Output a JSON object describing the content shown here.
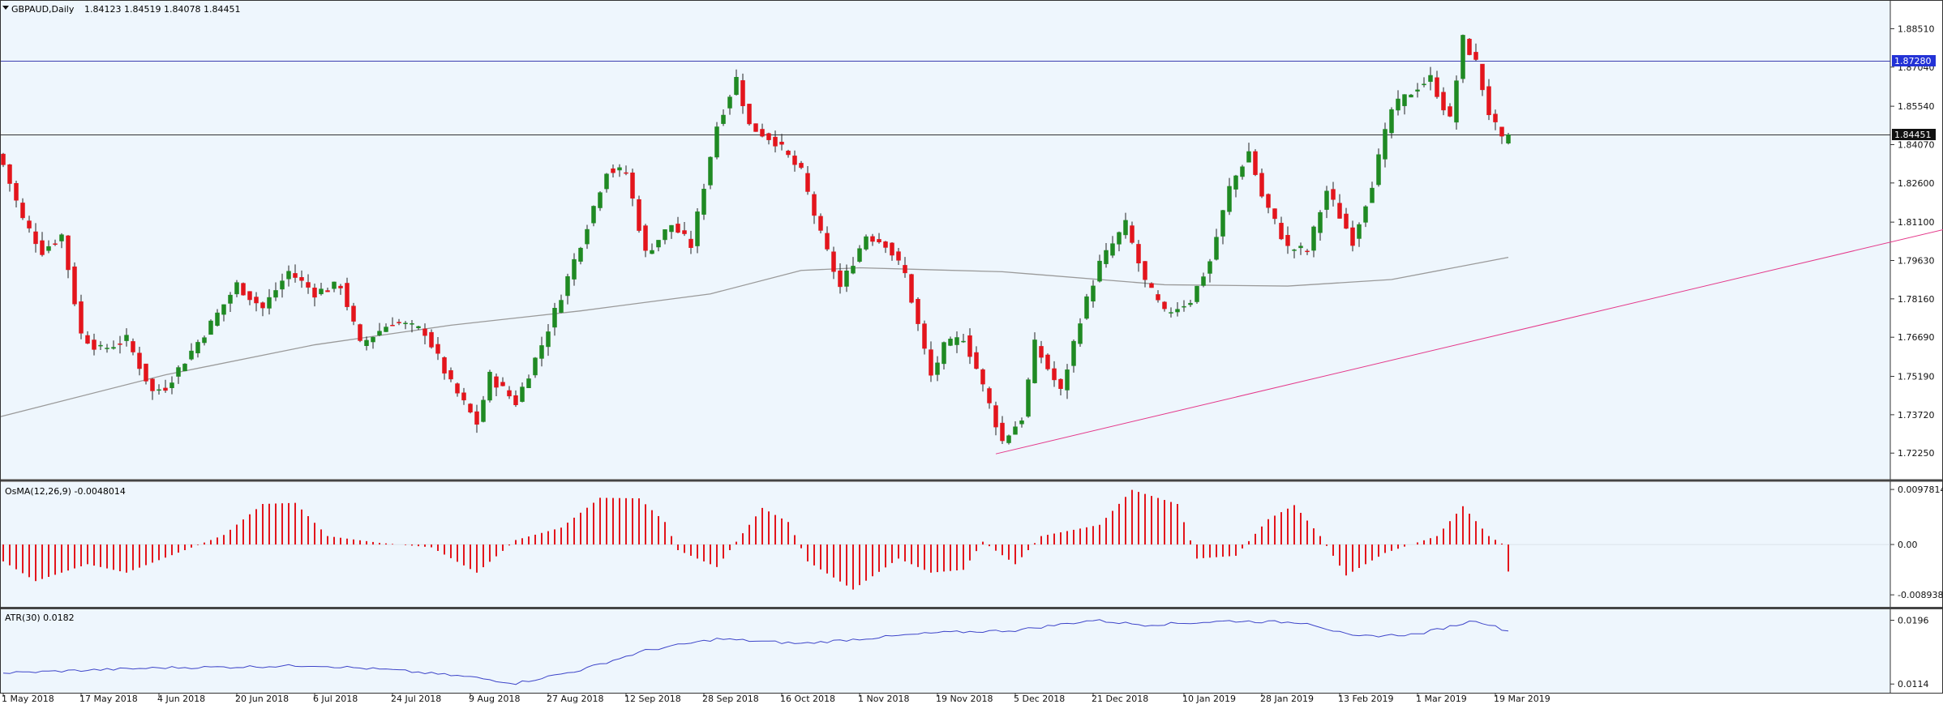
{
  "header": {
    "symbol_label": "GBPAUD,Daily",
    "ohlc": "1.84123 1.84519 1.84078 1.84451"
  },
  "colors": {
    "background": "#eef6fd",
    "bull": "#1f8a23",
    "bear": "#e3151c",
    "wick": "#222222",
    "moving_average": "#9a9a9a",
    "trendline": "#e4388a",
    "h_line_blue": "#3c3fb0",
    "h_line_black": "#333333",
    "osma": "#e3151c",
    "atr": "#3d44c9",
    "blue_tag": "#2332d6"
  },
  "price_panel": {
    "ylim": [
      1.7145,
      1.893
    ],
    "y_ticks": [
      "1.88510",
      "1.87040",
      "1.85540",
      "1.84070",
      "1.82600",
      "1.81100",
      "1.79630",
      "1.78160",
      "1.76690",
      "1.75190",
      "1.73720",
      "1.72250"
    ],
    "levels": [
      {
        "value": 1.8728,
        "label": "1.87280",
        "style": "blue"
      },
      {
        "value": 1.84451,
        "label": "1.84451",
        "style": "black"
      }
    ],
    "trendline": {
      "start": [
        0,
        1.7222
      ],
      "end": [
        255,
        1.874
      ]
    }
  },
  "osma_panel": {
    "label": "OsMA(12,26,9) -0.0048014",
    "ylim": [
      -0.0105,
      0.0108
    ],
    "y_ticks": [
      "0.0097814",
      "0.00",
      "-0.0089382"
    ]
  },
  "atr_panel": {
    "label": "ATR(30) 0.0182",
    "ylim": [
      0.0108,
      0.0208
    ],
    "y_ticks": [
      "0.0196",
      "0.0114"
    ]
  },
  "x_axis": {
    "labels": [
      "1 May 2018",
      "17 May 2018",
      "4 Jun 2018",
      "20 Jun 2018",
      "6 Jul 2018",
      "24 Jul 2018",
      "9 Aug 2018",
      "27 Aug 2018",
      "12 Sep 2018",
      "28 Sep 2018",
      "16 Oct 2018",
      "1 Nov 2018",
      "19 Nov 2018",
      "5 Dec 2018",
      "21 Dec 2018",
      "10 Jan 2019",
      "28 Jan 2019",
      "13 Feb 2019",
      "1 Mar 2019",
      "19 Mar 2019"
    ]
  },
  "chart_data": {
    "type": "candlestick",
    "symbol": "GBPAUD",
    "timeframe": "Daily",
    "x_start": "2018-05-01",
    "x_end": "2019-03-21",
    "close_anchors": [
      [
        "2018-05-01",
        1.833
      ],
      [
        "2018-05-04",
        1.812
      ],
      [
        "2018-05-09",
        1.8
      ],
      [
        "2018-05-14",
        1.806
      ],
      [
        "2018-05-17",
        1.768
      ],
      [
        "2018-05-22",
        1.762
      ],
      [
        "2018-05-28",
        1.766
      ],
      [
        "2018-06-01",
        1.746
      ],
      [
        "2018-06-05",
        1.748
      ],
      [
        "2018-06-08",
        1.758
      ],
      [
        "2018-06-14",
        1.772
      ],
      [
        "2018-06-20",
        1.787
      ],
      [
        "2018-06-26",
        1.778
      ],
      [
        "2018-07-02",
        1.792
      ],
      [
        "2018-07-06",
        1.784
      ],
      [
        "2018-07-12",
        1.787
      ],
      [
        "2018-07-17",
        1.764
      ],
      [
        "2018-07-24",
        1.773
      ],
      [
        "2018-07-31",
        1.769
      ],
      [
        "2018-08-06",
        1.749
      ],
      [
        "2018-08-10",
        1.734
      ],
      [
        "2018-08-14",
        1.752
      ],
      [
        "2018-08-20",
        1.742
      ],
      [
        "2018-08-24",
        1.764
      ],
      [
        "2018-08-29",
        1.783
      ],
      [
        "2018-09-03",
        1.803
      ],
      [
        "2018-09-07",
        1.831
      ],
      [
        "2018-09-12",
        1.83
      ],
      [
        "2018-09-17",
        1.799
      ],
      [
        "2018-09-21",
        1.81
      ],
      [
        "2018-09-26",
        1.802
      ],
      [
        "2018-10-02",
        1.848
      ],
      [
        "2018-10-05",
        1.866
      ],
      [
        "2018-10-09",
        1.848
      ],
      [
        "2018-10-15",
        1.842
      ],
      [
        "2018-10-19",
        1.83
      ],
      [
        "2018-10-24",
        1.806
      ],
      [
        "2018-10-29",
        1.786
      ],
      [
        "2018-11-02",
        1.806
      ],
      [
        "2018-11-07",
        1.803
      ],
      [
        "2018-11-12",
        1.791
      ],
      [
        "2018-11-16",
        1.752
      ],
      [
        "2018-11-20",
        1.763
      ],
      [
        "2018-11-23",
        1.767
      ],
      [
        "2018-11-27",
        1.755
      ],
      [
        "2018-12-03",
        1.727
      ],
      [
        "2018-12-06",
        1.736
      ],
      [
        "2018-12-10",
        1.764
      ],
      [
        "2018-12-14",
        1.746
      ],
      [
        "2018-12-19",
        1.774
      ],
      [
        "2018-12-24",
        1.795
      ],
      [
        "2018-12-28",
        1.81
      ],
      [
        "2019-01-02",
        1.788
      ],
      [
        "2019-01-07",
        1.776
      ],
      [
        "2019-01-11",
        1.781
      ],
      [
        "2019-01-16",
        1.796
      ],
      [
        "2019-01-21",
        1.824
      ],
      [
        "2019-01-24",
        1.838
      ],
      [
        "2019-01-28",
        1.821
      ],
      [
        "2019-02-01",
        1.801
      ],
      [
        "2019-02-06",
        1.8
      ],
      [
        "2019-02-11",
        1.823
      ],
      [
        "2019-02-15",
        1.804
      ],
      [
        "2019-02-20",
        1.826
      ],
      [
        "2019-02-25",
        1.854
      ],
      [
        "2019-03-01",
        1.863
      ],
      [
        "2019-03-05",
        1.866
      ],
      [
        "2019-03-08",
        1.85
      ],
      [
        "2019-03-12",
        1.881
      ],
      [
        "2019-03-14",
        1.872
      ],
      [
        "2019-03-18",
        1.853
      ],
      [
        "2019-03-20",
        1.842
      ],
      [
        "2019-03-21",
        1.84451
      ]
    ],
    "last_bar": {
      "open": 1.84123,
      "high": 1.84519,
      "low": 1.84078,
      "close": 1.84451
    },
    "moving_average_anchors": [
      [
        "2018-05-01",
        1.7365
      ],
      [
        "2018-06-05",
        1.7525
      ],
      [
        "2018-07-06",
        1.764
      ],
      [
        "2018-08-06",
        1.7715
      ],
      [
        "2018-09-03",
        1.777
      ],
      [
        "2018-10-01",
        1.7835
      ],
      [
        "2018-10-19",
        1.7925
      ],
      [
        "2018-11-01",
        1.7935
      ],
      [
        "2018-12-03",
        1.792
      ],
      [
        "2019-01-07",
        1.787
      ],
      [
        "2019-02-01",
        1.7865
      ],
      [
        "2019-02-25",
        1.789
      ],
      [
        "2019-03-21",
        1.7975
      ]
    ],
    "osma_anchors": [
      [
        "2018-05-01",
        -0.003
      ],
      [
        "2018-05-08",
        -0.0065
      ],
      [
        "2018-05-18",
        -0.0035
      ],
      [
        "2018-05-28",
        -0.005
      ],
      [
        "2018-06-08",
        -0.001
      ],
      [
        "2018-06-18",
        0.0017
      ],
      [
        "2018-06-26",
        0.0072
      ],
      [
        "2018-07-03",
        0.0074
      ],
      [
        "2018-07-10",
        0.0015
      ],
      [
        "2018-07-20",
        0.0003
      ],
      [
        "2018-08-01",
        -0.0005
      ],
      [
        "2018-08-10",
        -0.005
      ],
      [
        "2018-08-20",
        0.0008
      ],
      [
        "2018-08-29",
        0.003
      ],
      [
        "2018-09-06",
        0.0083
      ],
      [
        "2018-09-14",
        0.0082
      ],
      [
        "2018-09-20",
        0.004
      ],
      [
        "2018-09-24",
        -0.001
      ],
      [
        "2018-10-02",
        -0.004
      ],
      [
        "2018-10-11",
        0.0065
      ],
      [
        "2018-10-17",
        0.004
      ],
      [
        "2018-10-22",
        -0.003
      ],
      [
        "2018-10-31",
        -0.008
      ],
      [
        "2018-11-09",
        -0.0025
      ],
      [
        "2018-11-16",
        -0.005
      ],
      [
        "2018-11-23",
        -0.0045
      ],
      [
        "2018-11-28",
        0.0005
      ],
      [
        "2018-12-05",
        -0.0035
      ],
      [
        "2018-12-11",
        0.0015
      ],
      [
        "2018-12-24",
        0.0035
      ],
      [
        "2018-12-31",
        0.0097
      ],
      [
        "2019-01-09",
        0.0072
      ],
      [
        "2019-01-14",
        -0.0025
      ],
      [
        "2019-01-22",
        -0.002
      ],
      [
        "2019-01-29",
        0.0045
      ],
      [
        "2019-02-04",
        0.007
      ],
      [
        "2019-02-08",
        0.0015
      ],
      [
        "2019-02-14",
        -0.0055
      ],
      [
        "2019-02-22",
        -0.0015
      ],
      [
        "2019-03-06",
        0.0015
      ],
      [
        "2019-03-12",
        0.0068
      ],
      [
        "2019-03-18",
        0.0015
      ],
      [
        "2019-03-22",
        -0.0005
      ],
      [
        "2019-03-27",
        -0.001
      ],
      [
        "2019-04-01",
        -0.0048014
      ]
    ],
    "atr_anchors": [
      [
        "2018-05-01",
        0.0128
      ],
      [
        "2018-05-15",
        0.0131
      ],
      [
        "2018-06-05",
        0.0135
      ],
      [
        "2018-06-20",
        0.0136
      ],
      [
        "2018-07-06",
        0.0138
      ],
      [
        "2018-07-24",
        0.0132
      ],
      [
        "2018-08-09",
        0.0123
      ],
      [
        "2018-08-20",
        0.0115
      ],
      [
        "2018-09-03",
        0.0132
      ],
      [
        "2018-09-17",
        0.0157
      ],
      [
        "2018-10-02",
        0.0172
      ],
      [
        "2018-10-19",
        0.0166
      ],
      [
        "2018-11-01",
        0.0172
      ],
      [
        "2018-11-19",
        0.018
      ],
      [
        "2018-12-05",
        0.0183
      ],
      [
        "2018-12-21",
        0.0196
      ],
      [
        "2019-01-02",
        0.019
      ],
      [
        "2019-01-21",
        0.0195
      ],
      [
        "2019-02-06",
        0.0193
      ],
      [
        "2019-02-15",
        0.0175
      ],
      [
        "2019-03-01",
        0.0178
      ],
      [
        "2019-03-14",
        0.0196
      ],
      [
        "2019-03-21",
        0.0182
      ],
      [
        "2019-03-28",
        0.0184
      ],
      [
        "2019-04-01",
        0.0182
      ]
    ]
  }
}
